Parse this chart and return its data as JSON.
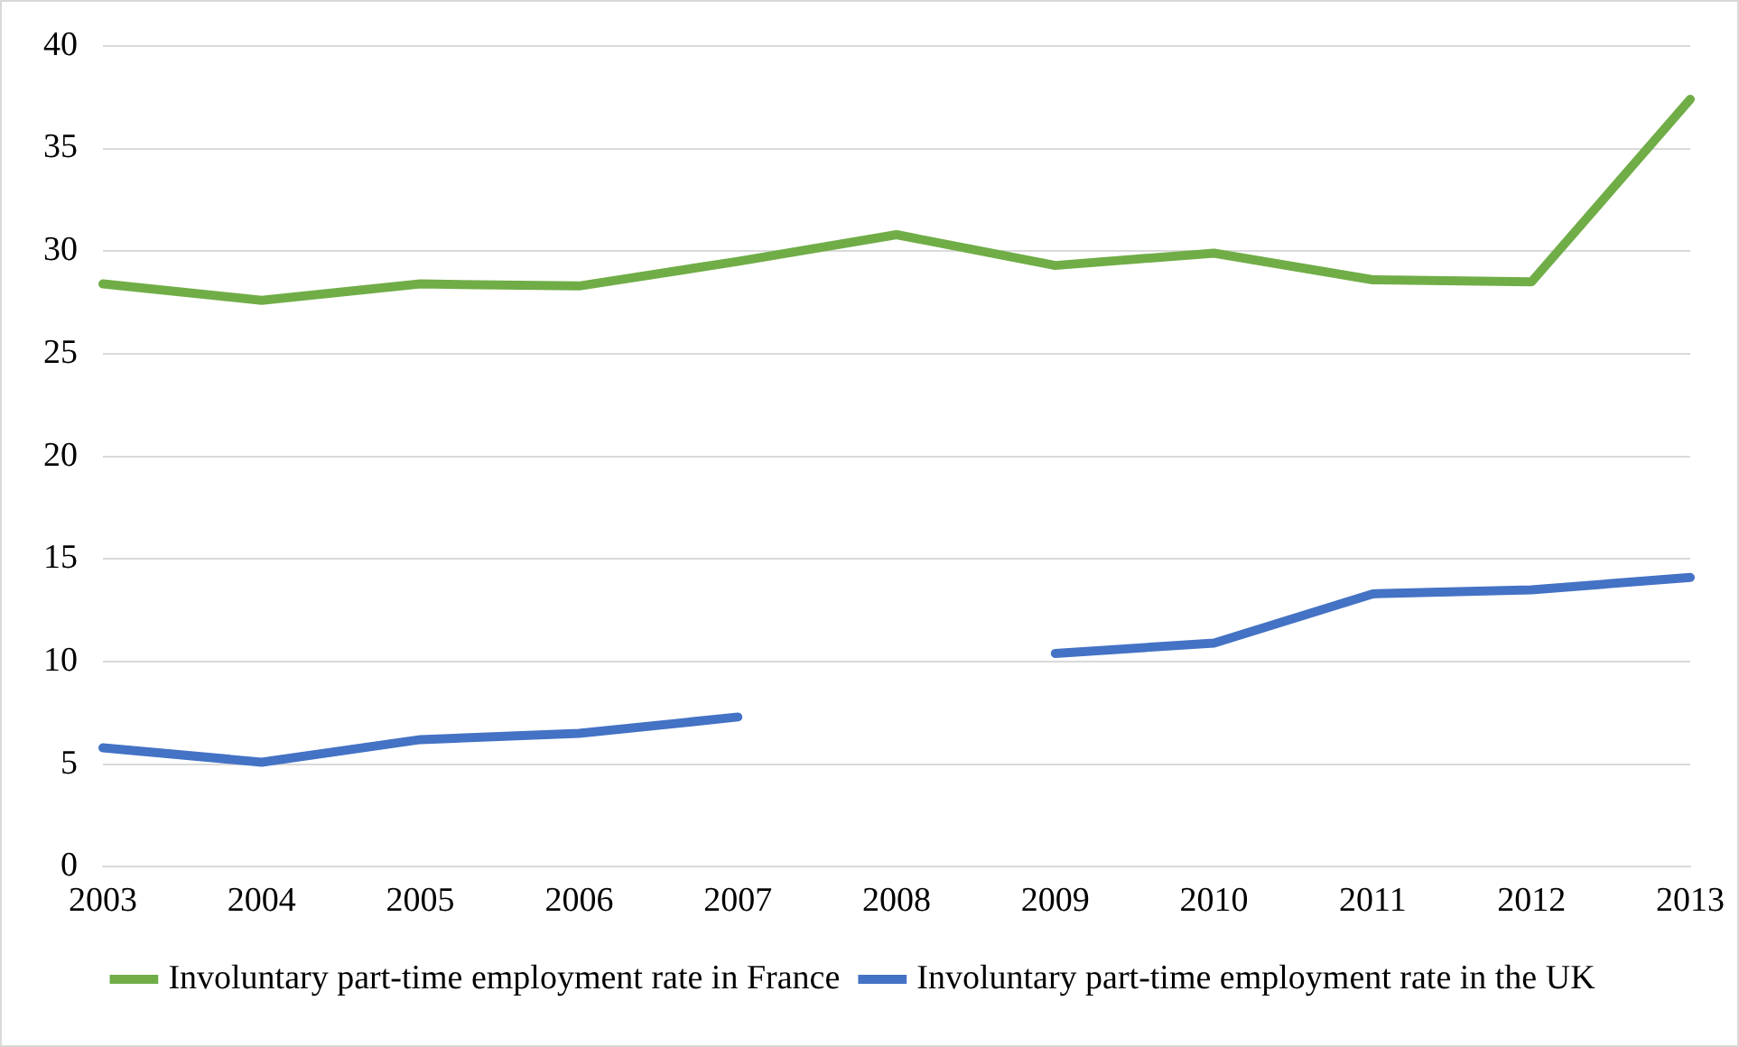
{
  "chart_data": {
    "type": "line",
    "categories": [
      "2003",
      "2004",
      "2005",
      "2006",
      "2007",
      "2008",
      "2009",
      "2010",
      "2011",
      "2012",
      "2013"
    ],
    "series": [
      {
        "name": "Involuntary part-time employment rate in France",
        "color": "#70ad47",
        "values": [
          28.4,
          27.6,
          28.4,
          28.3,
          29.5,
          30.8,
          29.3,
          29.9,
          28.6,
          28.5,
          37.4
        ]
      },
      {
        "name": "Involuntary part-time employment rate in the UK",
        "color": "#4472c4",
        "values": [
          5.8,
          5.1,
          6.2,
          6.5,
          7.3,
          null,
          10.4,
          10.9,
          13.3,
          13.5,
          14.1
        ]
      }
    ],
    "ylim": [
      0,
      40
    ],
    "yticks": [
      0,
      5,
      10,
      15,
      20,
      25,
      30,
      35,
      40
    ],
    "grid": "y",
    "legend": "bottom",
    "marker": "none",
    "line_style": "solid"
  }
}
